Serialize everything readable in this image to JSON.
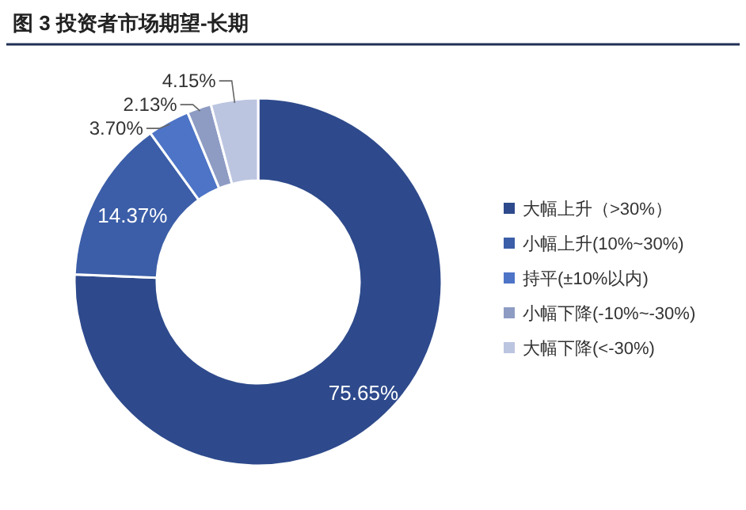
{
  "chart_data": {
    "type": "donut",
    "title": "图 3 投资者市场期望-长期",
    "categories": [
      "大幅上升（>30%）",
      "小幅上升(10%~30%)",
      "持平(±10%以内)",
      "小幅下降(-10%~-30%)",
      "大幅下降(<-30%)"
    ],
    "values": [
      75.65,
      14.37,
      3.7,
      2.13,
      4.15
    ],
    "colors": [
      "#2e4a8c",
      "#3c5ea8",
      "#4d74c6",
      "#8e9cc4",
      "#bcc5e0"
    ],
    "value_labels": [
      "75.65%",
      "14.37%",
      "3.70%",
      "2.13%",
      "4.15%"
    ],
    "legend": "right"
  }
}
